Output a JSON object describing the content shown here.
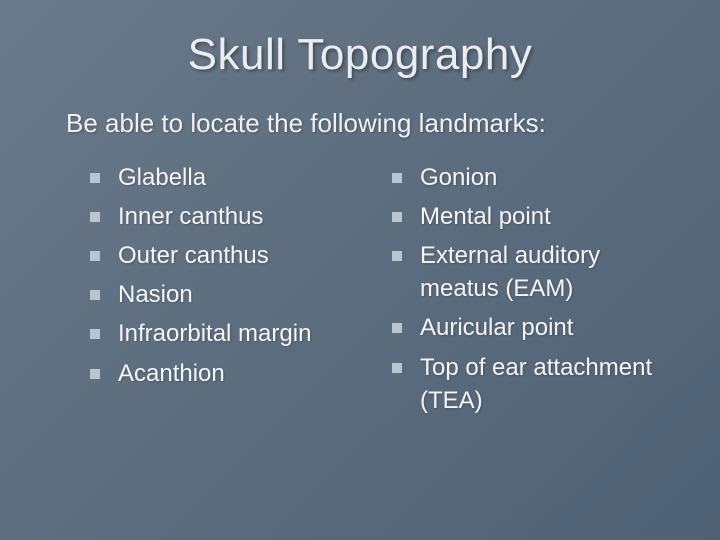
{
  "slide": {
    "background_gradient": [
      "#6b7a8a",
      "#5e6f80",
      "#4f6174"
    ],
    "text_color": "#ffffff",
    "bullet_color": "#b9c5d1",
    "title": "Skull Topography",
    "title_fontsize": 44,
    "subtitle": "Be able to locate the following landmarks:",
    "subtitle_fontsize": 26,
    "list_fontsize": 24,
    "left_items": [
      "Glabella",
      "Inner canthus",
      "Outer canthus",
      "Nasion",
      "Infraorbital margin",
      "Acanthion"
    ],
    "right_items": [
      "Gonion",
      "Mental point",
      "External auditory meatus (EAM)",
      "Auricular point",
      "Top of ear attachment (TEA)"
    ]
  }
}
